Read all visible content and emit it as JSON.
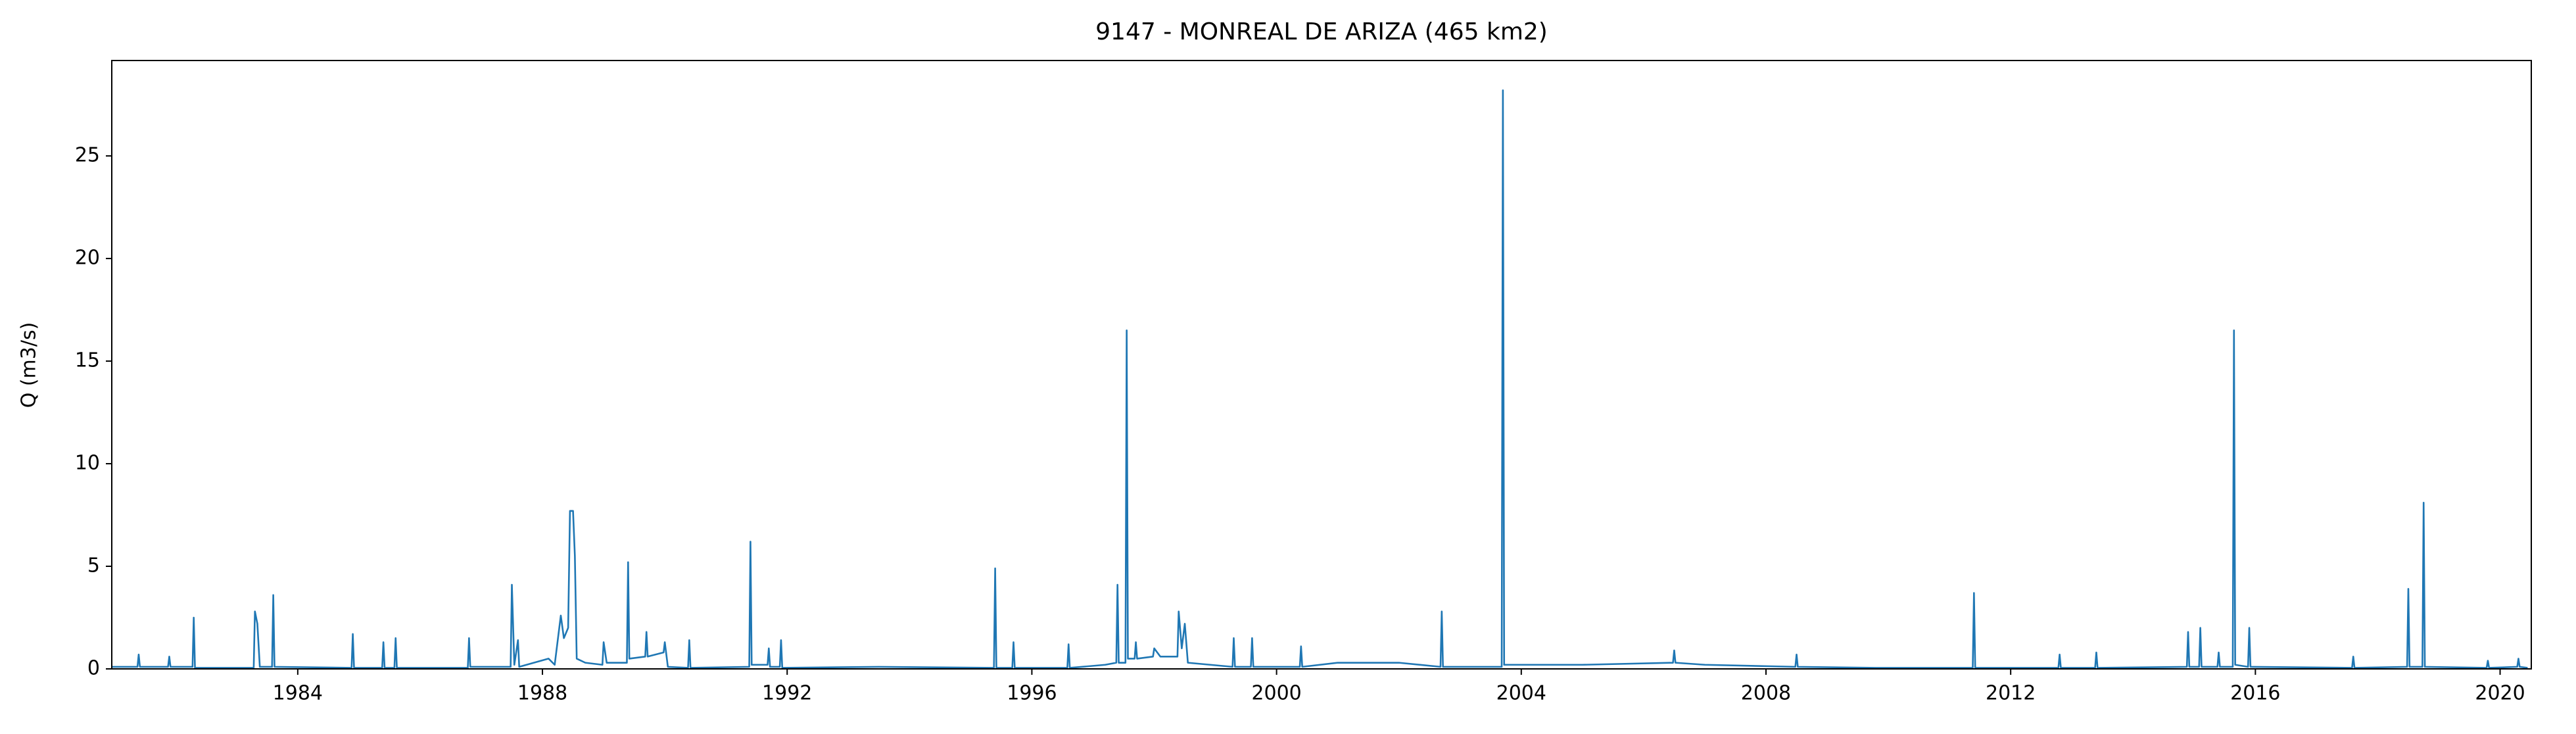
{
  "chart_data": {
    "type": "line",
    "title": "9147 - MONREAL DE ARIZA (465 km2)",
    "y_label": "Q (m3/s)",
    "xlim": [
      1980.96,
      2020.51
    ],
    "xticks": [
      1984,
      1988,
      1992,
      1996,
      2000,
      2004,
      2008,
      2012,
      2016,
      2020
    ],
    "ylim": [
      0,
      29.65
    ],
    "yticks": [
      0,
      5,
      10,
      15,
      20,
      25
    ],
    "grid": false,
    "series": [
      {
        "color": "#1f77b4",
        "x": [
          1980.96,
          1981.38,
          1981.4,
          1981.42,
          1981.88,
          1981.9,
          1981.92,
          1982.28,
          1982.3,
          1982.32,
          1983.28,
          1983.3,
          1983.34,
          1983.38,
          1983.58,
          1983.6,
          1983.62,
          1984.88,
          1984.9,
          1984.92,
          1985.38,
          1985.4,
          1985.42,
          1985.58,
          1985.6,
          1985.62,
          1986.78,
          1986.8,
          1986.82,
          1987.48,
          1987.5,
          1987.54,
          1987.6,
          1987.62,
          1988.1,
          1988.2,
          1988.3,
          1988.35,
          1988.42,
          1988.45,
          1988.5,
          1988.53,
          1988.56,
          1988.7,
          1988.98,
          1989.0,
          1989.05,
          1989.38,
          1989.4,
          1989.42,
          1989.68,
          1989.7,
          1989.72,
          1989.98,
          1990.0,
          1990.05,
          1990.38,
          1990.4,
          1990.42,
          1991.38,
          1991.4,
          1991.42,
          1991.68,
          1991.7,
          1991.72,
          1991.88,
          1991.9,
          1991.92,
          1993.5,
          1995.38,
          1995.4,
          1995.42,
          1995.68,
          1995.7,
          1995.72,
          1996.58,
          1996.6,
          1996.62,
          1997.2,
          1997.38,
          1997.4,
          1997.42,
          1997.53,
          1997.55,
          1997.57,
          1997.68,
          1997.7,
          1997.72,
          1997.98,
          1998.0,
          1998.1,
          1998.38,
          1998.4,
          1998.45,
          1998.5,
          1998.55,
          1999.28,
          1999.3,
          1999.32,
          1999.58,
          1999.6,
          1999.62,
          2000.38,
          2000.4,
          2000.42,
          2001.0,
          2002.0,
          2002.68,
          2002.7,
          2002.72,
          2003.68,
          2003.7,
          2003.72,
          2005.0,
          2006.48,
          2006.5,
          2006.52,
          2007.0,
          2008.48,
          2008.5,
          2008.52,
          2009.8,
          2011.38,
          2011.4,
          2011.42,
          2012.78,
          2012.8,
          2012.82,
          2013.38,
          2013.4,
          2013.42,
          2014.88,
          2014.9,
          2014.92,
          2015.08,
          2015.1,
          2015.12,
          2015.38,
          2015.4,
          2015.42,
          2015.63,
          2015.65,
          2015.67,
          2015.88,
          2015.9,
          2015.92,
          2017.58,
          2017.6,
          2017.62,
          2018.48,
          2018.5,
          2018.52,
          2018.73,
          2018.75,
          2018.77,
          2019.78,
          2019.8,
          2019.82,
          2020.28,
          2020.3,
          2020.32,
          2020.45
        ],
        "values": [
          0.1,
          0.1,
          0.7,
          0.1,
          0.1,
          0.6,
          0.1,
          0.1,
          2.5,
          0.05,
          0.05,
          2.8,
          2.2,
          0.1,
          0.1,
          3.6,
          0.1,
          0.05,
          1.7,
          0.05,
          0.05,
          1.3,
          0.05,
          0.05,
          1.5,
          0.05,
          0.05,
          1.5,
          0.1,
          0.1,
          4.1,
          0.2,
          1.4,
          0.1,
          0.5,
          0.2,
          2.6,
          1.5,
          2.0,
          7.7,
          7.7,
          5.5,
          0.5,
          0.3,
          0.2,
          1.3,
          0.3,
          0.3,
          5.2,
          0.5,
          0.6,
          1.8,
          0.6,
          0.8,
          1.3,
          0.1,
          0.05,
          1.4,
          0.05,
          0.1,
          6.2,
          0.2,
          0.2,
          1.0,
          0.1,
          0.1,
          1.4,
          0.05,
          0.1,
          0.05,
          4.9,
          0.05,
          0.05,
          1.3,
          0.05,
          0.05,
          1.2,
          0.05,
          0.2,
          0.3,
          4.1,
          0.3,
          0.3,
          16.5,
          0.5,
          0.5,
          1.3,
          0.5,
          0.6,
          1.0,
          0.6,
          0.6,
          2.8,
          1.0,
          2.2,
          0.3,
          0.1,
          1.5,
          0.1,
          0.1,
          1.5,
          0.1,
          0.1,
          1.1,
          0.1,
          0.3,
          0.3,
          0.1,
          2.8,
          0.1,
          0.1,
          28.2,
          0.2,
          0.2,
          0.3,
          0.9,
          0.3,
          0.2,
          0.1,
          0.7,
          0.1,
          0.05,
          0.05,
          3.7,
          0.05,
          0.05,
          0.7,
          0.05,
          0.05,
          0.8,
          0.05,
          0.1,
          1.8,
          0.1,
          0.1,
          2.0,
          0.1,
          0.1,
          0.8,
          0.1,
          0.1,
          16.5,
          0.2,
          0.1,
          2.0,
          0.1,
          0.05,
          0.6,
          0.05,
          0.1,
          3.9,
          0.1,
          0.1,
          8.1,
          0.1,
          0.05,
          0.4,
          0.05,
          0.1,
          0.5,
          0.1,
          0.05
        ]
      }
    ]
  }
}
